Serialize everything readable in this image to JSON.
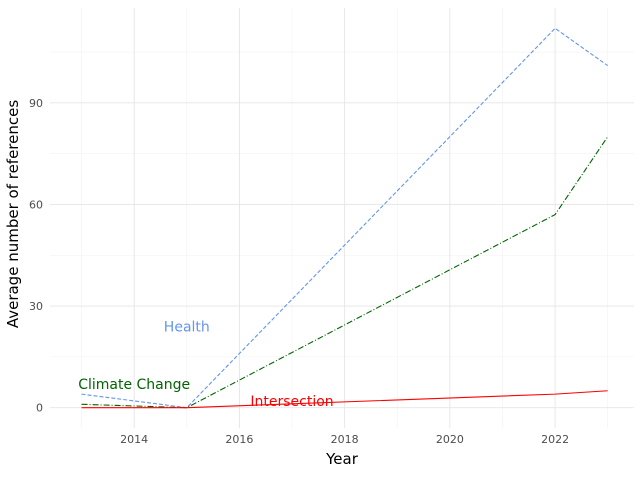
{
  "chart_data": {
    "type": "line",
    "title": "",
    "xlabel": "Year",
    "ylabel": "Average number of references",
    "xlim": [
      2012.4,
      2023.5
    ],
    "ylim": [
      -6,
      118
    ],
    "x_ticks": [
      2014,
      2016,
      2018,
      2020,
      2022
    ],
    "y_ticks": [
      0,
      30,
      60,
      90
    ],
    "grid": true,
    "legend": "none",
    "series": [
      {
        "name": "Health",
        "color": "#6495ed",
        "dash": "4,2",
        "label_position": {
          "x": 2015.0,
          "y": 24
        },
        "x": [
          2013,
          2015,
          2022,
          2023
        ],
        "y": [
          4,
          0,
          112,
          101
        ]
      },
      {
        "name": "Climate Change",
        "color": "#006400",
        "dash": "6,2,1,2",
        "label_position": {
          "x": 2014.0,
          "y": 7
        },
        "x": [
          2013,
          2015,
          2022,
          2023
        ],
        "y": [
          1,
          0,
          57,
          80
        ]
      },
      {
        "name": "Intersection",
        "color": "#ff0000",
        "dash": "",
        "label_position": {
          "x": 2017.0,
          "y": 2
        },
        "x": [
          2013,
          2015,
          2022,
          2023
        ],
        "y": [
          0,
          0,
          4,
          5
        ]
      }
    ]
  }
}
